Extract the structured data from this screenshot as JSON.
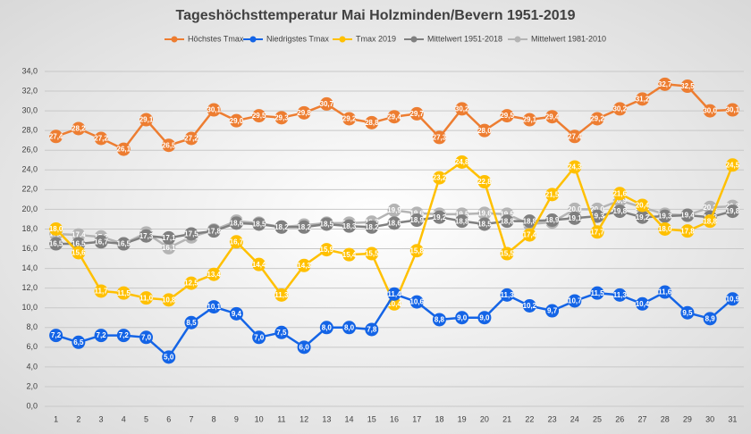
{
  "chart_data": {
    "type": "line",
    "title": "Tageshöchsttemperatur Mai Holzminden/Bevern 1951-2019",
    "categories": [
      "1",
      "2",
      "3",
      "4",
      "5",
      "6",
      "7",
      "8",
      "9",
      "10",
      "11",
      "12",
      "13",
      "14",
      "15",
      "16",
      "17",
      "18",
      "19",
      "20",
      "21",
      "22",
      "23",
      "24",
      "25",
      "26",
      "27",
      "28",
      "29",
      "30",
      "31"
    ],
    "ylim": [
      0,
      34
    ],
    "yticks": [
      {
        "value": 0,
        "label": "0,0"
      },
      {
        "value": 2,
        "label": "2,0"
      },
      {
        "value": 4,
        "label": "4,0"
      },
      {
        "value": 6,
        "label": "6,0"
      },
      {
        "value": 8,
        "label": "8,0"
      },
      {
        "value": 10,
        "label": "10,0"
      },
      {
        "value": 12,
        "label": "12,0"
      },
      {
        "value": 14,
        "label": "14,0"
      },
      {
        "value": 16,
        "label": "16,0"
      },
      {
        "value": 18,
        "label": "18,0"
      },
      {
        "value": 20,
        "label": "20,0"
      },
      {
        "value": 22,
        "label": "22,0"
      },
      {
        "value": 24,
        "label": "24,0"
      },
      {
        "value": 26,
        "label": "26,0"
      },
      {
        "value": 28,
        "label": "28,0"
      },
      {
        "value": 30,
        "label": "30,0"
      },
      {
        "value": 32,
        "label": "32,0"
      },
      {
        "value": 34,
        "label": "34,0"
      }
    ],
    "grid": true,
    "legend": "top",
    "series": [
      {
        "name": "Höchstes Tmax",
        "color": "#ed7d31",
        "values": [
          27.4,
          28.2,
          27.2,
          26.1,
          29.1,
          26.5,
          27.2,
          30.1,
          29.0,
          29.5,
          29.3,
          29.8,
          30.7,
          29.2,
          28.8,
          29.4,
          29.7,
          27.3,
          30.2,
          28.0,
          29.5,
          29.1,
          29.4,
          27.4,
          29.2,
          30.2,
          31.2,
          32.7,
          32.5,
          30.0,
          30.1
        ],
        "value_labels": [
          "27,4",
          "28,2",
          "27,2",
          "26,1",
          "29,1",
          "26,5",
          "27,2",
          "30,1",
          "29,0",
          "29,5",
          "29,3",
          "29,8",
          "30,7",
          "29,2",
          "28,8",
          "29,4",
          "29,7",
          "27,3",
          "30,2",
          "28,0",
          "29,5",
          "29,1",
          "29,4",
          "27,4",
          "29,2",
          "30,2",
          "31,2",
          "32,7",
          "32,5",
          "30,0",
          "30,1"
        ]
      },
      {
        "name": "Niedrigstes Tmax",
        "color": "#1464e6",
        "values": [
          7.2,
          6.5,
          7.2,
          7.2,
          7.0,
          5.0,
          8.5,
          10.1,
          9.4,
          7.0,
          7.5,
          6.0,
          8.0,
          8.0,
          7.8,
          11.4,
          10.6,
          8.8,
          9.0,
          9.0,
          11.3,
          10.2,
          9.7,
          10.7,
          11.5,
          11.3,
          10.4,
          11.6,
          9.5,
          8.9,
          10.9
        ],
        "value_labels": [
          "7,2",
          "6,5",
          "7,2",
          "7,2",
          "7,0",
          "5,0",
          "8,5",
          "10,1",
          "9,4",
          "7,0",
          "7,5",
          "6,0",
          "8,0",
          "8,0",
          "7,8",
          "11,4",
          "10,6",
          "8,8",
          "9,0",
          "9,0",
          "11,3",
          "10,2",
          "9,7",
          "10,7",
          "11,5",
          "11,3",
          "10,4",
          "11,6",
          "9,5",
          "8,9",
          "10,9"
        ]
      },
      {
        "name": "Tmax 2019",
        "color": "#ffc000",
        "values": [
          18.0,
          15.6,
          11.7,
          11.5,
          11.0,
          10.8,
          12.5,
          13.4,
          16.7,
          14.4,
          11.3,
          14.3,
          15.9,
          15.4,
          15.5,
          10.4,
          15.8,
          23.2,
          24.8,
          22.8,
          15.5,
          17.4,
          21.5,
          24.3,
          17.7,
          21.6,
          20.4,
          18.0,
          17.8,
          18.8,
          24.5
        ],
        "value_labels": [
          "18,0",
          "15,6",
          "11,7",
          "11,5",
          "11,0",
          "10,8",
          "12,5",
          "13,4",
          "16,7",
          "14,4",
          "11,3",
          "14,3",
          "15,9",
          "15,4",
          "15,5",
          "10,4",
          "15,8",
          "23,2",
          "24,8",
          "22,8",
          "15,5",
          "17,4",
          "21,5",
          "24,3",
          "17,7",
          "21,6",
          "20,4",
          "18,0",
          "17,8",
          "18,8",
          "24,5"
        ]
      },
      {
        "name": "Mittelwert 1951-2018",
        "color": "#7f7f7f",
        "values": [
          16.5,
          16.5,
          16.7,
          16.5,
          17.3,
          17.1,
          17.5,
          17.8,
          18.6,
          18.5,
          18.2,
          18.2,
          18.5,
          18.3,
          18.2,
          18.6,
          18.9,
          19.2,
          18.8,
          18.5,
          18.8,
          18.8,
          18.9,
          19.1,
          19.3,
          19.8,
          19.2,
          19.3,
          19.4,
          19.2,
          19.8
        ],
        "value_labels": [
          "16,5",
          "16,5",
          "16,7",
          "16,5",
          "17,3",
          "17,1",
          "17,5",
          "17,8",
          "18,6",
          "18,5",
          "18,2",
          "18,2",
          "18,5",
          "18,3",
          "18,2",
          "18,6",
          "18,9",
          "19,2",
          "18,8",
          "18,5",
          "18,8",
          "18,8",
          "18,9",
          "19,1",
          "19,3",
          "19,8",
          "19,2",
          "19,3",
          "19,4",
          "19,2",
          "19,8"
        ]
      },
      {
        "name": "Mittelwert 1981-2010",
        "color": "#b4b4b4",
        "values": [
          17.5,
          17.4,
          17.2,
          16.5,
          17.6,
          16.1,
          17.2,
          17.9,
          18.8,
          18.6,
          18.2,
          18.4,
          18.6,
          18.6,
          18.7,
          19.9,
          19.6,
          19.5,
          19.5,
          19.6,
          19.5,
          18.5,
          18.7,
          20.0,
          20.0,
          20.9,
          20.2,
          19.5,
          19.4,
          20.2,
          20.3
        ],
        "value_labels": [
          "17,5",
          "17,4",
          "17,2",
          "16,5",
          "17,6",
          "16,1",
          "17,2",
          "17,9",
          "18,8",
          "18,6",
          "18,2",
          "18,4",
          "18,6",
          "18,6",
          "18,7",
          "19,9",
          "19,6",
          "19,5",
          "19,5",
          "19,6",
          "19,5",
          "18,5",
          "18,7",
          "20,0",
          "20,0",
          "20,9",
          "20,2",
          "19,5",
          "19,4",
          "20,2",
          "20,3"
        ]
      }
    ]
  }
}
